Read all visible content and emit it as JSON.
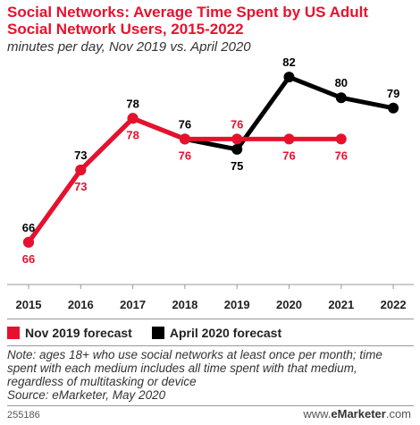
{
  "title": "Social Networks: Average Time Spent by US Adult Social Network Users, 2015-2022",
  "subtitle": "minutes per day, Nov 2019 vs. April 2020",
  "colors": {
    "series_nov": "#e8112d",
    "series_apr": "#000000",
    "title": "#e8112d"
  },
  "chart_data": {
    "type": "line",
    "x": [
      "2015",
      "2016",
      "2017",
      "2018",
      "2019",
      "2020",
      "2021",
      "2022"
    ],
    "ylim": [
      60,
      86
    ],
    "grid": false,
    "legend_position": "bottom",
    "series": [
      {
        "name": "Nov 2019 forecast",
        "color": "#e8112d",
        "values": [
          66,
          73,
          78,
          76,
          76,
          76,
          76,
          null
        ]
      },
      {
        "name": "April 2020 forecast",
        "color": "#000000",
        "values": [
          66,
          73,
          78,
          76,
          75,
          82,
          80,
          79
        ]
      }
    ],
    "labels": {
      "nov": [
        "66",
        "73",
        "78",
        "76",
        "76",
        "76",
        "76",
        ""
      ],
      "apr": [
        "66",
        "73",
        "78",
        "76",
        "75",
        "82",
        "80",
        "79"
      ]
    }
  },
  "legend": [
    "Nov 2019 forecast",
    "April 2020 forecast"
  ],
  "note": "Note: ages 18+ who use social networks at least once per month; time spent with each medium includes all time spent with that medium, regardless of multitasking or device",
  "source": "Source: eMarketer, May 2020",
  "chart_id": "255186",
  "brand": {
    "prefix": "www.",
    "name": "eMarketer",
    "suffix": ".com"
  }
}
